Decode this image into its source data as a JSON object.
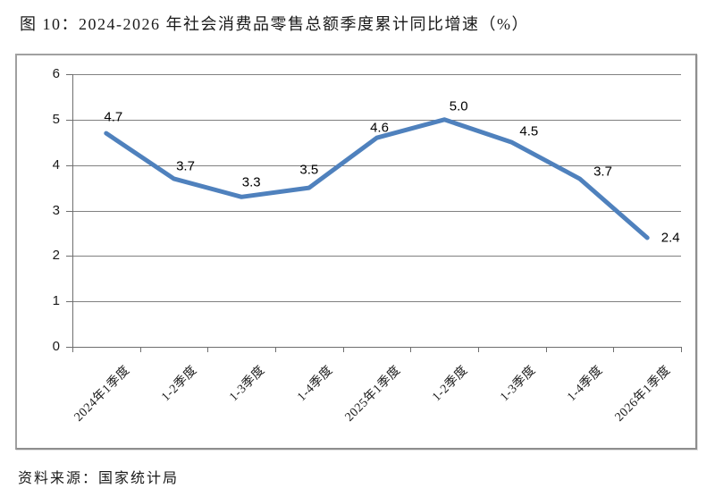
{
  "page": {
    "title": "图 10：2024-2026 年社会消费品零售总额季度累计同比增速（%）",
    "source_note": "资料来源：国家统计局"
  },
  "chart_data": {
    "type": "line",
    "title": "图 10：2024-2026 年社会消费品零售总额季度累计同比增速（%）",
    "categories": [
      "2024年1季度",
      "1-2季度",
      "1-3季度",
      "1-4季度",
      "2025年1季度",
      "1-2季度",
      "1-3季度",
      "1-4季度",
      "2026年1季度"
    ],
    "values": [
      4.7,
      3.7,
      3.3,
      3.5,
      4.6,
      5.0,
      4.5,
      3.7,
      2.4
    ],
    "data_labels": [
      "4.7",
      "3.7",
      "3.3",
      "3.5",
      "4.6",
      "5.0",
      "4.5",
      "3.7",
      "2.4"
    ],
    "xlabel": "",
    "ylabel": "",
    "ylim": [
      0,
      6
    ],
    "y_ticks": [
      0,
      1,
      2,
      3,
      4,
      5,
      6
    ],
    "grid": true,
    "legend": false,
    "line_color": "#4F81BD",
    "gridline_color": "#808080",
    "axis_color": "#6e6e6e",
    "source": "资料来源：国家统计局"
  }
}
